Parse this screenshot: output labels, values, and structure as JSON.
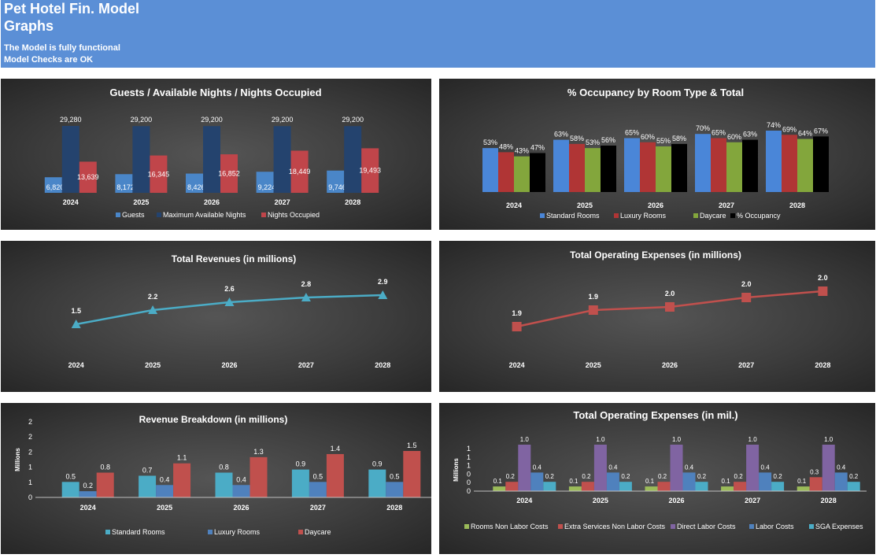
{
  "header": {
    "title_line1": "Pet Hotel Fin. Model",
    "title_line2": "Graphs",
    "status1": "The Model is fully functional",
    "status2": "Model Checks are OK"
  },
  "chart_data": [
    {
      "id": "guests",
      "type": "bar",
      "title": "Guests / Available Nights / Nights Occupied",
      "categories": [
        "2024",
        "2025",
        "2026",
        "2027",
        "2028"
      ],
      "series": [
        {
          "name": "Guests",
          "values": [
            6820,
            8172,
            8426,
            9224,
            9746
          ],
          "labels": [
            "6,820",
            "8,172",
            "8,426",
            "9,224",
            "9,746"
          ],
          "color": "#4a86c8"
        },
        {
          "name": "Maximum Available Nights",
          "values": [
            29280,
            29200,
            29200,
            29200,
            29200
          ],
          "labels": [
            "29,280",
            "29,200",
            "29,200",
            "29,200",
            "29,200"
          ],
          "color": "#24436e"
        },
        {
          "name": "Nights Occupied",
          "values": [
            13639,
            16345,
            16852,
            18449,
            19493
          ],
          "labels": [
            "13,639",
            "16,345",
            "16,852",
            "18,449",
            "19,493"
          ],
          "color": "#c0454a"
        }
      ],
      "legend": "bottom"
    },
    {
      "id": "occupancy",
      "type": "bar",
      "title": "% Occupancy by Room Type & Total",
      "categories": [
        "2024",
        "2025",
        "2026",
        "2027",
        "2028"
      ],
      "series": [
        {
          "name": "Standard Rooms",
          "values": [
            53,
            63,
            65,
            70,
            74
          ],
          "labels": [
            "53%",
            "63%",
            "65%",
            "70%",
            "74%"
          ],
          "color": "#4a86d8"
        },
        {
          "name": "Luxury Rooms",
          "values": [
            48,
            58,
            60,
            65,
            69
          ],
          "labels": [
            "48%",
            "58%",
            "60%",
            "65%",
            "69%"
          ],
          "color": "#b03535"
        },
        {
          "name": "Daycare",
          "values": [
            43,
            53,
            55,
            60,
            64
          ],
          "labels": [
            "43%",
            "53%",
            "55%",
            "60%",
            "64%"
          ],
          "color": "#83a63c"
        },
        {
          "name": "% Occupancy",
          "values": [
            47,
            56,
            58,
            63,
            67
          ],
          "labels": [
            "47%",
            "56%",
            "58%",
            "63%",
            "67%"
          ],
          "color": "#000000"
        }
      ],
      "legend": "bottom"
    },
    {
      "id": "revenues",
      "type": "line",
      "title": "Total Revenues (in millions)",
      "categories": [
        "2024",
        "2025",
        "2026",
        "2027",
        "2028"
      ],
      "series": [
        {
          "values": [
            1.5,
            2.2,
            2.6,
            2.8,
            2.9
          ],
          "labels": [
            "1.5",
            "2.2",
            "2.6",
            "2.8",
            "2.9"
          ],
          "color": "#4bacc6"
        }
      ]
    },
    {
      "id": "opex",
      "type": "line",
      "title": "Total Operating Expenses (in millions)",
      "categories": [
        "2024",
        "2025",
        "2026",
        "2027",
        "2028"
      ],
      "series": [
        {
          "values": [
            1.9,
            1.9,
            2.0,
            2.0,
            2.0
          ],
          "labels": [
            "1.9",
            "1.9",
            "2.0",
            "2.0",
            "2.0"
          ],
          "color": "#c0504d"
        }
      ]
    },
    {
      "id": "revbreak",
      "type": "bar",
      "title": "Revenue Breakdown (in millions)",
      "ylabel": "Millions",
      "yticks": [
        "0",
        "1",
        "1",
        "2",
        "2",
        "2"
      ],
      "categories": [
        "2024",
        "2025",
        "2026",
        "2027",
        "2028"
      ],
      "series": [
        {
          "name": "Standard Rooms",
          "values": [
            0.5,
            0.7,
            0.8,
            0.9,
            0.9
          ],
          "labels": [
            "0.5",
            "0.7",
            "0.8",
            "0.9",
            "0.9"
          ],
          "color": "#4bacc6"
        },
        {
          "name": "Luxury Rooms",
          "values": [
            0.2,
            0.4,
            0.4,
            0.5,
            0.5
          ],
          "labels": [
            "0.2",
            "0.4",
            "0.4",
            "0.5",
            "0.5"
          ],
          "color": "#4f81bd"
        },
        {
          "name": "Daycare",
          "values": [
            0.8,
            1.1,
            1.3,
            1.4,
            1.5
          ],
          "labels": [
            "0.8",
            "1.1",
            "1.3",
            "1.4",
            "1.5"
          ],
          "color": "#c0504d"
        }
      ],
      "legend": "bottom"
    },
    {
      "id": "opexbreak",
      "type": "bar",
      "title": "Total Operating Expenses (in mil.)",
      "ylabel": "Millions",
      "yticks": [
        "0",
        "0",
        "0",
        "1",
        "1",
        "1"
      ],
      "categories": [
        "2024",
        "2025",
        "2026",
        "2027",
        "2028"
      ],
      "series": [
        {
          "name": "Rooms Non Labor Costs",
          "values": [
            0.1,
            0.1,
            0.1,
            0.1,
            0.1
          ],
          "labels": [
            "0.1",
            "0.1",
            "0.1",
            "0.1",
            "0.1"
          ],
          "color": "#9bbb59"
        },
        {
          "name": "Extra Services Non Labor Costs",
          "values": [
            0.2,
            0.2,
            0.2,
            0.2,
            0.3
          ],
          "labels": [
            "0.2",
            "0.2",
            "0.2",
            "0.2",
            "0.3"
          ],
          "color": "#c0504d"
        },
        {
          "name": "Direct Labor Costs",
          "values": [
            1.0,
            1.0,
            1.0,
            1.0,
            1.0
          ],
          "labels": [
            "1.0",
            "1.0",
            "1.0",
            "1.0",
            "1.0"
          ],
          "color": "#8064a2"
        },
        {
          "name": "Labor Costs",
          "values": [
            0.4,
            0.4,
            0.4,
            0.4,
            0.4
          ],
          "labels": [
            "0.4",
            "0.4",
            "0.4",
            "0.4",
            "0.4"
          ],
          "color": "#4f81bd"
        },
        {
          "name": "SGA Expenses",
          "values": [
            0.2,
            0.2,
            0.2,
            0.2,
            0.2
          ],
          "labels": [
            "0.2",
            "0.2",
            "0.2",
            "0.2",
            "0.2"
          ],
          "color": "#4bacc6"
        }
      ],
      "legend": "bottom"
    }
  ]
}
